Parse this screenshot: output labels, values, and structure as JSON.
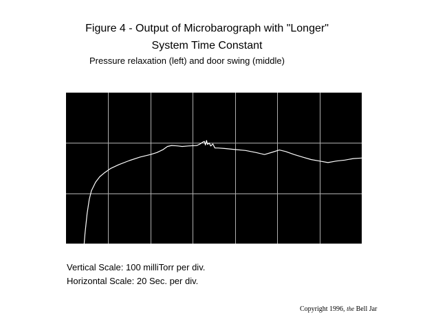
{
  "chart_data": {
    "type": "line",
    "title": "Figure 4 - Output of Microbarograph with \"Longer\"",
    "title_line2": "System Time Constant",
    "subtitle": "Pressure relaxation (left) and door swing (middle)",
    "xlim": [
      0,
      140
    ],
    "ylim": [
      0,
      300
    ],
    "x_div": 20,
    "y_div": 100,
    "grid": true,
    "background": "#000000",
    "grid_color": "#b0b0b0",
    "line_color": "#ffffff",
    "series": [
      {
        "points": [
          [
            8.6,
            0
          ],
          [
            9,
            20
          ],
          [
            10,
            60
          ],
          [
            11,
            88
          ],
          [
            12,
            105
          ],
          [
            14,
            122
          ],
          [
            16,
            133
          ],
          [
            18,
            140
          ],
          [
            21,
            149
          ],
          [
            25,
            157
          ],
          [
            30,
            165
          ],
          [
            35,
            172
          ],
          [
            40,
            177
          ],
          [
            43,
            181
          ],
          [
            46,
            187
          ],
          [
            48,
            193
          ],
          [
            50,
            195
          ],
          [
            53,
            194
          ],
          [
            55,
            193
          ],
          [
            58,
            194
          ],
          [
            62,
            195
          ],
          [
            63.5,
            198
          ],
          [
            64.5,
            201
          ],
          [
            65.5,
            203
          ],
          [
            66,
            196
          ],
          [
            66.5,
            205
          ],
          [
            67,
            197
          ],
          [
            67.8,
            200
          ],
          [
            68.5,
            194
          ],
          [
            69.5,
            198
          ],
          [
            70.5,
            190
          ],
          [
            72,
            190
          ],
          [
            75,
            189
          ],
          [
            80,
            187
          ],
          [
            85,
            185
          ],
          [
            90,
            181
          ],
          [
            94,
            177
          ],
          [
            98,
            182
          ],
          [
            101,
            186
          ],
          [
            104,
            183
          ],
          [
            108,
            177
          ],
          [
            112,
            172
          ],
          [
            116,
            167
          ],
          [
            120,
            164
          ],
          [
            124,
            161
          ],
          [
            128,
            164
          ],
          [
            132,
            166
          ],
          [
            136,
            169
          ],
          [
            140,
            170
          ]
        ]
      }
    ]
  },
  "vertical_scale": "Vertical Scale: 100 milliTorr per div.",
  "horizontal_scale": "Horizontal Scale: 20 Sec. per div.",
  "copyright": {
    "prefix": "Copyright 1996,",
    "the": "the",
    "name": "Bell Jar"
  }
}
